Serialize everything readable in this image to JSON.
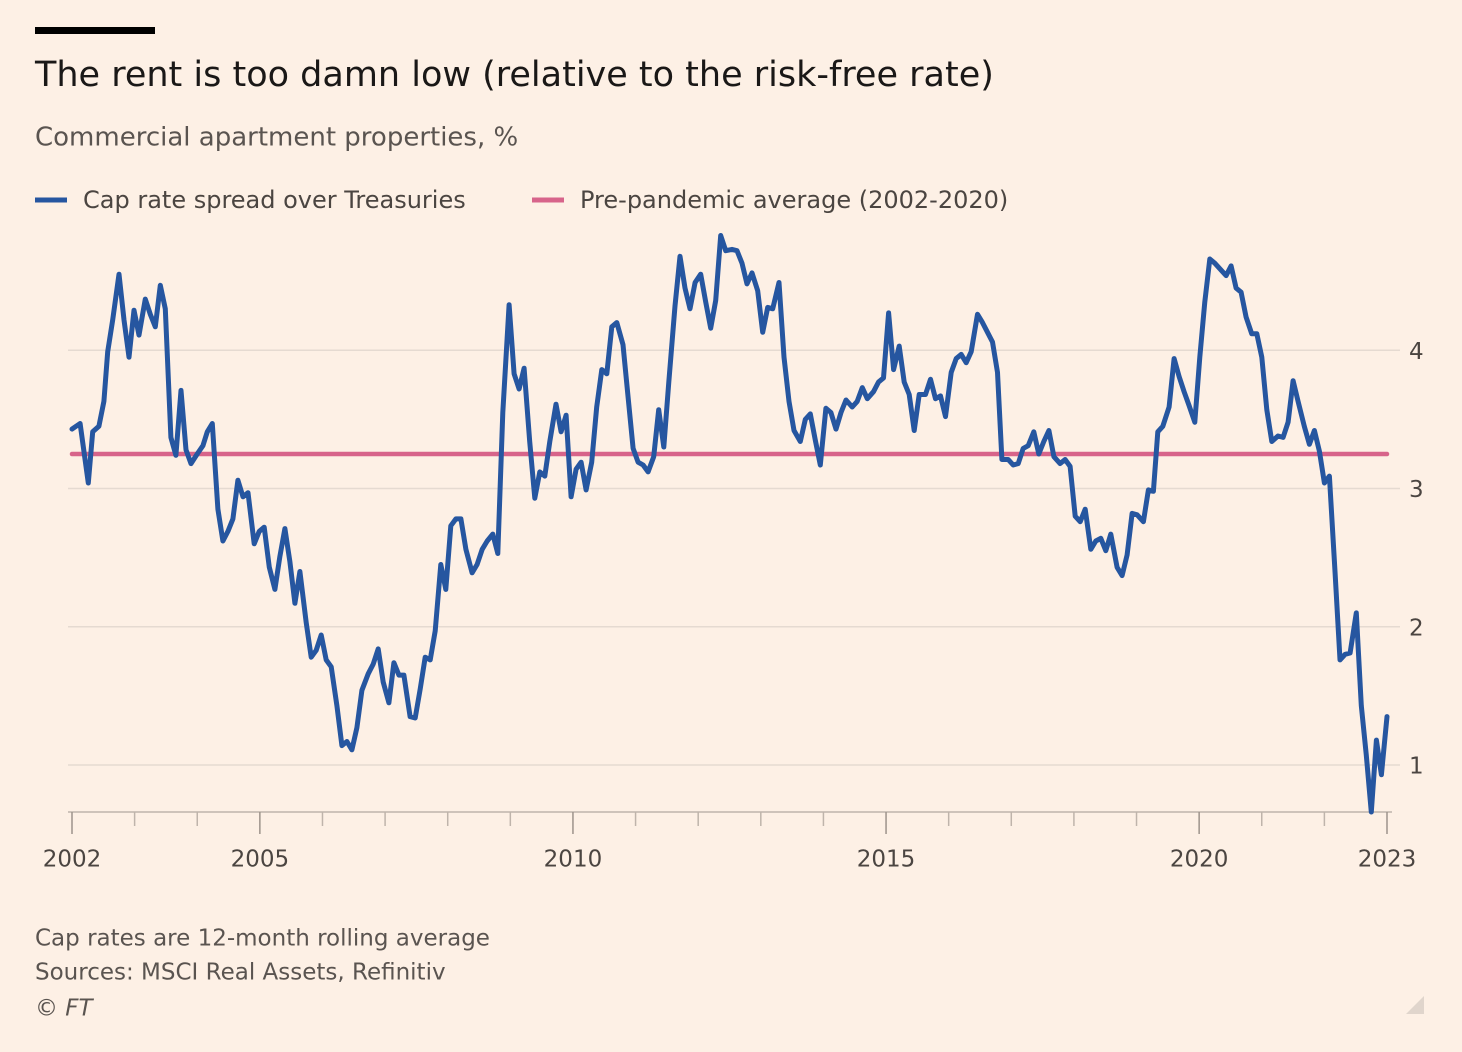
{
  "chart_data": {
    "type": "line",
    "title": "The rent is too damn low (relative to the risk-free rate)",
    "subtitle": "Commercial apartment properties, %",
    "series": [
      {
        "name": "Cap rate spread over Treasuries",
        "color": "#2656a0",
        "x": [
          2002.0,
          2002.13,
          2002.26,
          2002.33,
          2002.43,
          2002.51,
          2002.57,
          2002.65,
          2002.75,
          2002.83,
          2002.91,
          2002.99,
          2003.07,
          2003.17,
          2003.25,
          2003.33,
          2003.41,
          2003.49,
          2003.58,
          2003.66,
          2003.74,
          2003.82,
          2003.9,
          2004.0,
          2004.09,
          2004.16,
          2004.24,
          2004.33,
          2004.41,
          2004.49,
          2004.57,
          2004.65,
          2004.73,
          2004.81,
          2004.91,
          2004.99,
          2005.07,
          2005.15,
          2005.24,
          2005.32,
          2005.4,
          2005.48,
          2005.56,
          2005.64,
          2005.74,
          2005.82,
          2005.9,
          2005.98,
          2006.06,
          2006.14,
          2006.23,
          2006.31,
          2006.39,
          2006.47,
          2006.55,
          2006.63,
          2006.73,
          2006.81,
          2006.89,
          2006.97,
          2007.06,
          2007.14,
          2007.22,
          2007.3,
          2007.4,
          2007.48,
          2007.56,
          2007.64,
          2007.72,
          2007.8,
          2007.89,
          2007.97,
          2008.05,
          2008.13,
          2008.21,
          2008.29,
          2008.39,
          2008.47,
          2008.55,
          2008.63,
          2008.72,
          2008.8,
          2008.88,
          2008.98,
          2009.06,
          2009.14,
          2009.22,
          2009.31,
          2009.39,
          2009.47,
          2009.55,
          2009.63,
          2009.73,
          2009.81,
          2009.89,
          2009.97,
          2010.05,
          2010.13,
          2010.21,
          2010.3,
          2010.38,
          2010.46,
          2010.54,
          2010.62,
          2010.7,
          2010.8,
          2010.88,
          2010.96,
          2011.04,
          2011.12,
          2011.2,
          2011.29,
          2011.37,
          2011.45,
          2011.53,
          2011.63,
          2011.71,
          2011.79,
          2011.87,
          2011.95,
          2012.04,
          2012.12,
          2012.2,
          2012.28,
          2012.36,
          2012.44,
          2012.54,
          2012.62,
          2012.7,
          2012.78,
          2012.86,
          2012.95,
          2013.03,
          2013.11,
          2013.19,
          2013.29,
          2013.37,
          2013.45,
          2013.53,
          2013.63,
          2013.71,
          2013.79,
          2013.87,
          2013.95,
          2014.04,
          2014.12,
          2014.2,
          2014.28,
          2014.36,
          2014.46,
          2014.54,
          2014.62,
          2014.7,
          2014.8,
          2014.88,
          2014.96,
          2015.04,
          2015.12,
          2015.21,
          2015.29,
          2015.37,
          2015.45,
          2015.53,
          2015.63,
          2015.71,
          2015.79,
          2015.87,
          2015.95,
          2016.04,
          2016.12,
          2016.2,
          2016.28,
          2016.36,
          2016.46,
          2016.54,
          2016.62,
          2016.7,
          2016.78,
          2016.85,
          2016.95,
          2017.03,
          2017.11,
          2017.19,
          2017.27,
          2017.36,
          2017.44,
          2017.52,
          2017.6,
          2017.68,
          2017.78,
          2017.86,
          2017.94,
          2018.02,
          2018.1,
          2018.18,
          2018.27,
          2018.35,
          2018.43,
          2018.51,
          2018.59,
          2018.69,
          2018.77,
          2018.85,
          2018.93,
          2019.01,
          2019.11,
          2019.19,
          2019.27,
          2019.34,
          2019.42,
          2019.52,
          2019.6,
          2019.68,
          2019.76,
          2019.84,
          2019.93,
          2020.01,
          2020.09,
          2020.17,
          2020.25,
          2020.33,
          2020.43,
          2020.51,
          2020.59,
          2020.67,
          2020.75,
          2020.84,
          2020.92,
          2021.0,
          2021.08,
          2021.16,
          2021.26,
          2021.34,
          2021.42,
          2021.5,
          2021.58,
          2021.68,
          2021.76,
          2021.84,
          2021.92,
          2022.0,
          2022.08,
          2022.17,
          2022.25,
          2022.33,
          2022.41,
          2022.51,
          2022.59,
          2022.67,
          2022.75,
          2022.83,
          2022.91,
          2023.0
        ],
        "values": [
          3.43,
          3.47,
          3.04,
          3.41,
          3.45,
          3.63,
          3.99,
          4.22,
          4.55,
          4.22,
          3.95,
          4.29,
          4.11,
          4.37,
          4.26,
          4.17,
          4.47,
          4.3,
          3.37,
          3.24,
          3.71,
          3.28,
          3.18,
          3.25,
          3.31,
          3.41,
          3.47,
          2.85,
          2.62,
          2.69,
          2.78,
          3.06,
          2.94,
          2.97,
          2.6,
          2.69,
          2.72,
          2.43,
          2.27,
          2.51,
          2.71,
          2.47,
          2.17,
          2.4,
          2.03,
          1.78,
          1.83,
          1.94,
          1.76,
          1.71,
          1.43,
          1.14,
          1.17,
          1.11,
          1.27,
          1.54,
          1.66,
          1.73,
          1.84,
          1.6,
          1.45,
          1.74,
          1.65,
          1.65,
          1.35,
          1.34,
          1.55,
          1.78,
          1.76,
          1.97,
          2.45,
          2.27,
          2.73,
          2.78,
          2.78,
          2.56,
          2.39,
          2.45,
          2.56,
          2.62,
          2.67,
          2.53,
          3.55,
          4.33,
          3.83,
          3.72,
          3.87,
          3.34,
          2.93,
          3.12,
          3.09,
          3.34,
          3.61,
          3.41,
          3.53,
          2.94,
          3.14,
          3.19,
          2.99,
          3.19,
          3.59,
          3.86,
          3.83,
          4.17,
          4.2,
          4.04,
          3.66,
          3.29,
          3.19,
          3.17,
          3.12,
          3.23,
          3.57,
          3.3,
          3.77,
          4.32,
          4.68,
          4.45,
          4.3,
          4.49,
          4.55,
          4.35,
          4.16,
          4.36,
          4.83,
          4.72,
          4.73,
          4.72,
          4.63,
          4.48,
          4.56,
          4.43,
          4.13,
          4.31,
          4.3,
          4.49,
          3.95,
          3.63,
          3.42,
          3.34,
          3.5,
          3.54,
          3.35,
          3.17,
          3.58,
          3.55,
          3.43,
          3.55,
          3.64,
          3.59,
          3.63,
          3.73,
          3.65,
          3.7,
          3.77,
          3.8,
          4.27,
          3.86,
          4.03,
          3.77,
          3.68,
          3.42,
          3.68,
          3.68,
          3.79,
          3.65,
          3.67,
          3.52,
          3.84,
          3.94,
          3.97,
          3.91,
          3.99,
          4.26,
          4.2,
          4.13,
          4.06,
          3.84,
          3.21,
          3.21,
          3.17,
          3.18,
          3.29,
          3.31,
          3.41,
          3.25,
          3.34,
          3.42,
          3.23,
          3.18,
          3.21,
          3.16,
          2.8,
          2.76,
          2.85,
          2.56,
          2.62,
          2.64,
          2.55,
          2.67,
          2.43,
          2.37,
          2.52,
          2.82,
          2.81,
          2.76,
          2.99,
          2.98,
          3.41,
          3.45,
          3.59,
          3.94,
          3.81,
          3.7,
          3.6,
          3.48,
          3.95,
          4.35,
          4.66,
          4.63,
          4.59,
          4.54,
          4.61,
          4.45,
          4.42,
          4.24,
          4.12,
          4.12,
          3.95,
          3.57,
          3.34,
          3.38,
          3.37,
          3.48,
          3.78,
          3.63,
          3.45,
          3.32,
          3.42,
          3.27,
          3.04,
          3.09,
          2.4,
          1.76,
          1.8,
          1.81,
          2.1,
          1.43,
          1.07,
          0.66,
          1.18,
          0.93,
          1.35
        ]
      },
      {
        "name": "Pre-pandemic average (2002-2020)",
        "color": "#d7648a",
        "x": [
          2002,
          2023
        ],
        "values": [
          3.25,
          3.25
        ]
      }
    ],
    "xlim": [
      2002,
      2023
    ],
    "xticks": [
      2002,
      2005,
      2010,
      2015,
      2020,
      2023
    ],
    "xminorticks": [
      2003,
      2004,
      2006,
      2007,
      2008,
      2009,
      2011,
      2012,
      2013,
      2014,
      2016,
      2017,
      2018,
      2019,
      2021,
      2022
    ],
    "ylim": [
      0.66,
      4.87
    ],
    "yticks": [
      1,
      2,
      3,
      4
    ],
    "grid": true,
    "notes": [
      "Cap rates are 12-month rolling average",
      "Sources: MSCI Real Assets, Refinitiv",
      "© FT"
    ]
  }
}
